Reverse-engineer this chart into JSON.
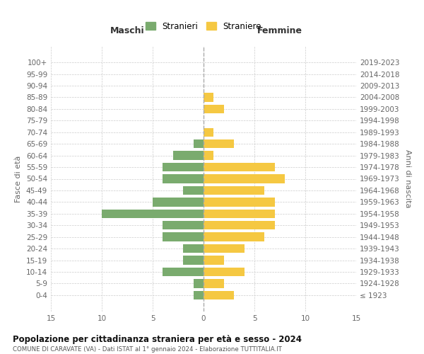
{
  "age_groups": [
    "100+",
    "95-99",
    "90-94",
    "85-89",
    "80-84",
    "75-79",
    "70-74",
    "65-69",
    "60-64",
    "55-59",
    "50-54",
    "45-49",
    "40-44",
    "35-39",
    "30-34",
    "25-29",
    "20-24",
    "15-19",
    "10-14",
    "5-9",
    "0-4"
  ],
  "birth_years": [
    "≤ 1923",
    "1924-1928",
    "1929-1933",
    "1934-1938",
    "1939-1943",
    "1944-1948",
    "1949-1953",
    "1954-1958",
    "1959-1963",
    "1964-1968",
    "1969-1973",
    "1974-1978",
    "1979-1983",
    "1984-1988",
    "1989-1993",
    "1994-1998",
    "1999-2003",
    "2004-2008",
    "2009-2013",
    "2014-2018",
    "2019-2023"
  ],
  "maschi": [
    0,
    0,
    0,
    0,
    0,
    0,
    0,
    1,
    3,
    4,
    4,
    2,
    5,
    10,
    4,
    4,
    2,
    2,
    4,
    1,
    1
  ],
  "femmine": [
    0,
    0,
    0,
    1,
    2,
    0,
    1,
    3,
    1,
    7,
    8,
    6,
    7,
    7,
    7,
    6,
    4,
    2,
    4,
    2,
    3
  ],
  "color_maschi": "#7aab6e",
  "color_femmine": "#f5c842",
  "title": "Popolazione per cittadinanza straniera per età e sesso - 2024",
  "subtitle": "COMUNE DI CARAVATE (VA) - Dati ISTAT al 1° gennaio 2024 - Elaborazione TUTTITALIA.IT",
  "xlabel_left": "Maschi",
  "xlabel_right": "Femmine",
  "ylabel_left": "Fasce di età",
  "ylabel_right": "Anni di nascita",
  "legend_maschi": "Stranieri",
  "legend_femmine": "Straniere",
  "xlim": 15,
  "background_color": "#ffffff",
  "grid_color": "#cccccc"
}
